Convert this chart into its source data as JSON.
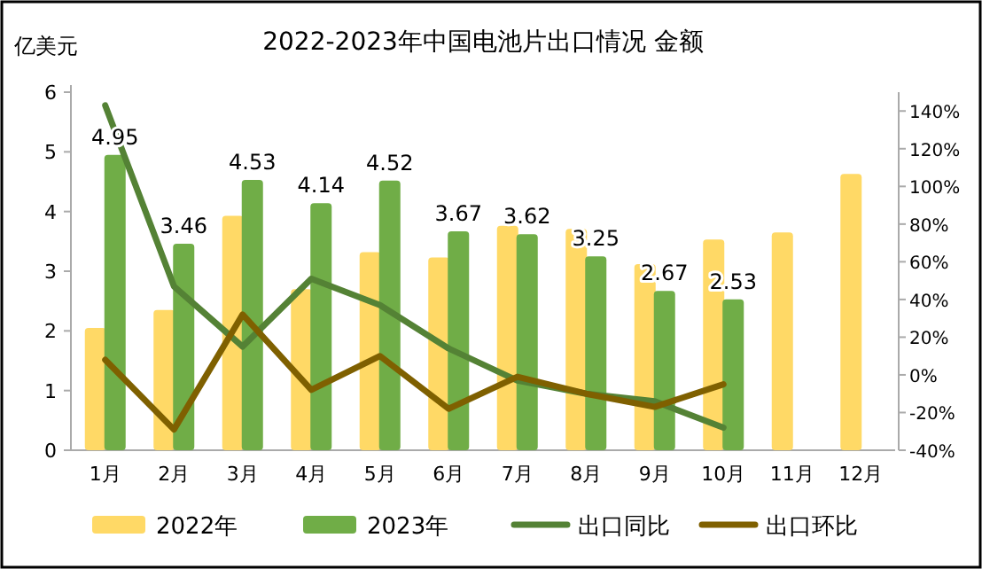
{
  "chart_data": {
    "type": "bar",
    "title": "2022-2023年中国电池片出口情况 金额",
    "ylabel": "亿美元",
    "categories": [
      "1月",
      "2月",
      "3月",
      "4月",
      "5月",
      "6月",
      "7月",
      "8月",
      "9月",
      "10月",
      "11月",
      "12月"
    ],
    "series": [
      {
        "name": "2022年",
        "color": "#ffd966",
        "values": [
          2.05,
          2.35,
          3.93,
          2.7,
          3.32,
          3.23,
          3.76,
          3.71,
          3.12,
          3.53,
          3.65,
          4.63
        ]
      },
      {
        "name": "2023年",
        "color": "#70ad47",
        "values": [
          4.95,
          3.46,
          4.53,
          4.14,
          4.52,
          3.67,
          3.62,
          3.25,
          2.67,
          2.53,
          null,
          null
        ],
        "value_labels": [
          "4.95",
          "3.46",
          "4.53",
          "4.14",
          "4.52",
          "3.67",
          "3.62",
          "3.25",
          "2.67",
          "2.53",
          null,
          null
        ]
      },
      {
        "name": "出口同比",
        "type": "line",
        "axis": "y2",
        "color": "#548235",
        "values": [
          143,
          47,
          15,
          51,
          37,
          14,
          -3,
          -10,
          -14,
          -28,
          null,
          null
        ]
      },
      {
        "name": "出口环比",
        "type": "line",
        "axis": "y2",
        "color": "#7f6000",
        "values": [
          8,
          -29,
          32,
          -8,
          10,
          -18,
          -1,
          -10,
          -17,
          -5,
          null,
          null
        ]
      }
    ],
    "ylim": [
      0,
      6
    ],
    "yticks": [
      0,
      1,
      2,
      3,
      4,
      5,
      6
    ],
    "y2lim": [
      -40,
      150
    ],
    "y2ticks": [
      {
        "value": -40,
        "label": "-40%"
      },
      {
        "value": -20,
        "label": "-20%"
      },
      {
        "value": 0,
        "label": "0%"
      },
      {
        "value": 20,
        "label": "20%"
      },
      {
        "value": 40,
        "label": "40%"
      },
      {
        "value": 60,
        "label": "60%"
      },
      {
        "value": 80,
        "label": "80%"
      },
      {
        "value": 100,
        "label": "100%"
      },
      {
        "value": 120,
        "label": "120%"
      },
      {
        "value": 140,
        "label": "140%"
      }
    ],
    "legend": "bottom",
    "grid": false
  }
}
